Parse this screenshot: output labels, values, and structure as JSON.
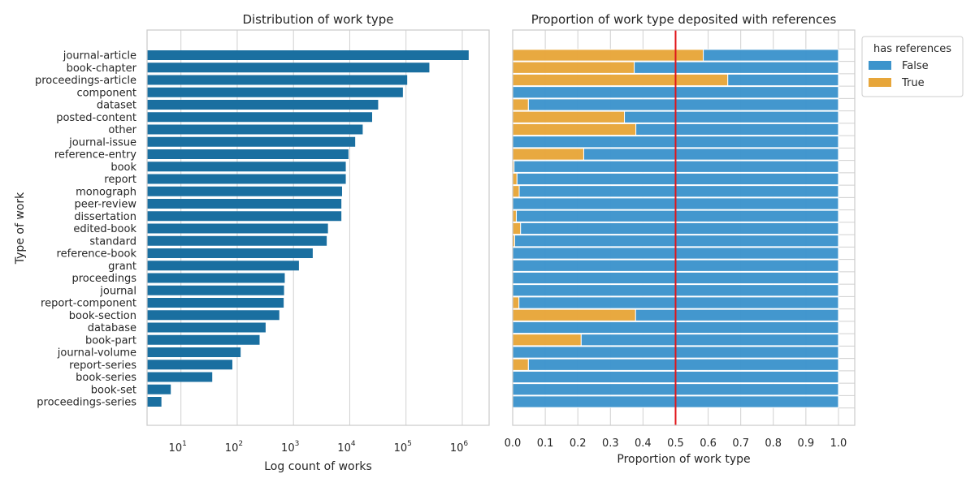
{
  "colors": {
    "bar_left": "#1a6fa0",
    "false": "#3d94cc",
    "true": "#e7a63a",
    "threshold": "#e0161b",
    "grid": "#d0d0d0",
    "frame": "#cccccc"
  },
  "chart_data": [
    {
      "type": "bar",
      "orientation": "horizontal",
      "title": "Distribution of work type",
      "xlabel": "Log count of works",
      "ylabel": "Type of work",
      "xscale": "log",
      "xlim": [
        2.5,
        3000000
      ],
      "xticks": [
        {
          "base": "10",
          "exp": "1",
          "value": 10
        },
        {
          "base": "10",
          "exp": "2",
          "value": 100
        },
        {
          "base": "10",
          "exp": "3",
          "value": 1000
        },
        {
          "base": "10",
          "exp": "4",
          "value": 10000
        },
        {
          "base": "10",
          "exp": "5",
          "value": 100000
        },
        {
          "base": "10",
          "exp": "6",
          "value": 1000000
        }
      ],
      "grid": true,
      "categories": [
        "journal-article",
        "book-chapter",
        "proceedings-article",
        "component",
        "dataset",
        "posted-content",
        "other",
        "journal-issue",
        "reference-entry",
        "book",
        "report",
        "monograph",
        "peer-review",
        "dissertation",
        "edited-book",
        "standard",
        "reference-book",
        "grant",
        "proceedings",
        "journal",
        "report-component",
        "book-section",
        "database",
        "book-part",
        "journal-volume",
        "report-series",
        "book-series",
        "book-set",
        "proceedings-series"
      ],
      "values": [
        1300000,
        260000,
        105000,
        88000,
        32000,
        25000,
        17000,
        12500,
        9500,
        8500,
        8500,
        7300,
        7100,
        7100,
        4100,
        3900,
        2200,
        1250,
        700,
        680,
        670,
        560,
        320,
        250,
        115,
        82,
        36,
        6.6,
        4.5
      ]
    },
    {
      "type": "bar",
      "orientation": "horizontal",
      "stacked": true,
      "title": "Proportion of work type deposited with references",
      "xlabel": "Proportion of work type",
      "xlim": [
        0.0,
        1.05
      ],
      "xticks": [
        "0.0",
        "0.1",
        "0.2",
        "0.3",
        "0.4",
        "0.5",
        "0.6",
        "0.7",
        "0.8",
        "0.9",
        "1.0"
      ],
      "reference_line": 0.5,
      "grid": true,
      "legend": {
        "title": "has references",
        "position": "outside-top-right",
        "entries": [
          "False",
          "True"
        ]
      },
      "categories": [
        "journal-article",
        "book-chapter",
        "proceedings-article",
        "component",
        "dataset",
        "posted-content",
        "other",
        "journal-issue",
        "reference-entry",
        "book",
        "report",
        "monograph",
        "peer-review",
        "dissertation",
        "edited-book",
        "standard",
        "reference-book",
        "grant",
        "proceedings",
        "journal",
        "report-component",
        "book-section",
        "database",
        "book-part",
        "journal-volume",
        "report-series",
        "book-series",
        "book-set",
        "proceedings-series"
      ],
      "series": [
        {
          "name": "True",
          "values": [
            0.585,
            0.373,
            0.66,
            0.0,
            0.048,
            0.343,
            0.378,
            0.0,
            0.218,
            0.004,
            0.013,
            0.02,
            0.0,
            0.011,
            0.024,
            0.006,
            0.0,
            0.0,
            0.0,
            0.0,
            0.019,
            0.377,
            0.0,
            0.21,
            0.0,
            0.048,
            0.0,
            0.0,
            0.0
          ]
        },
        {
          "name": "False",
          "values": [
            0.415,
            0.627,
            0.34,
            1.0,
            0.952,
            0.657,
            0.622,
            1.0,
            0.782,
            0.996,
            0.987,
            0.98,
            1.0,
            0.989,
            0.976,
            0.994,
            1.0,
            1.0,
            1.0,
            1.0,
            0.981,
            0.623,
            1.0,
            0.79,
            1.0,
            0.952,
            1.0,
            1.0,
            1.0
          ]
        }
      ]
    }
  ]
}
